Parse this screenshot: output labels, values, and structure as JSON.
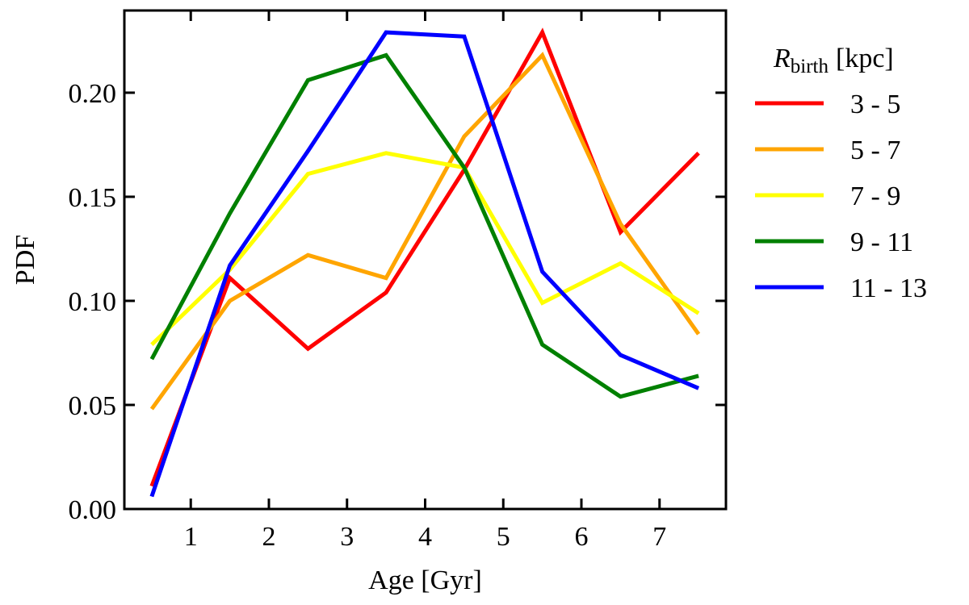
{
  "chart_data": {
    "type": "line",
    "xlabel": "Age [Gyr]",
    "ylabel": "PDF",
    "xlim": [
      0.15,
      7.85
    ],
    "ylim": [
      0.0,
      0.2395
    ],
    "xticks": [
      1,
      2,
      3,
      4,
      5,
      6,
      7
    ],
    "xtick_labels": [
      "1",
      "2",
      "3",
      "4",
      "5",
      "6",
      "7"
    ],
    "yticks": [
      0.0,
      0.05,
      0.1,
      0.15,
      0.2
    ],
    "ytick_labels": [
      "0.00",
      "0.05",
      "0.10",
      "0.15",
      "0.20"
    ],
    "x": [
      0.5,
      1.5,
      2.5,
      3.5,
      4.5,
      5.5,
      6.5,
      7.5
    ],
    "legend": {
      "placement": "outside-right",
      "title_symbol": "R",
      "title_subscript": "birth",
      "title_unit": "[kpc]"
    },
    "grid": false,
    "series": [
      {
        "name": "3 - 5",
        "color": "#ff0000",
        "values": [
          0.011,
          0.111,
          0.077,
          0.104,
          0.163,
          0.229,
          0.133,
          0.171
        ]
      },
      {
        "name": "5 - 7",
        "color": "#ffa500",
        "values": [
          0.048,
          0.1,
          0.122,
          0.111,
          0.179,
          0.218,
          0.137,
          0.084
        ]
      },
      {
        "name": "7 - 9",
        "color": "#ffff00",
        "values": [
          0.079,
          0.115,
          0.161,
          0.171,
          0.164,
          0.099,
          0.118,
          0.094
        ]
      },
      {
        "name": "9 - 11",
        "color": "#008000",
        "values": [
          0.072,
          0.142,
          0.206,
          0.218,
          0.164,
          0.079,
          0.054,
          0.064
        ]
      },
      {
        "name": "11 - 13",
        "color": "#0000ff",
        "values": [
          0.006,
          0.117,
          0.172,
          0.229,
          0.227,
          0.114,
          0.074,
          0.058
        ]
      }
    ]
  }
}
